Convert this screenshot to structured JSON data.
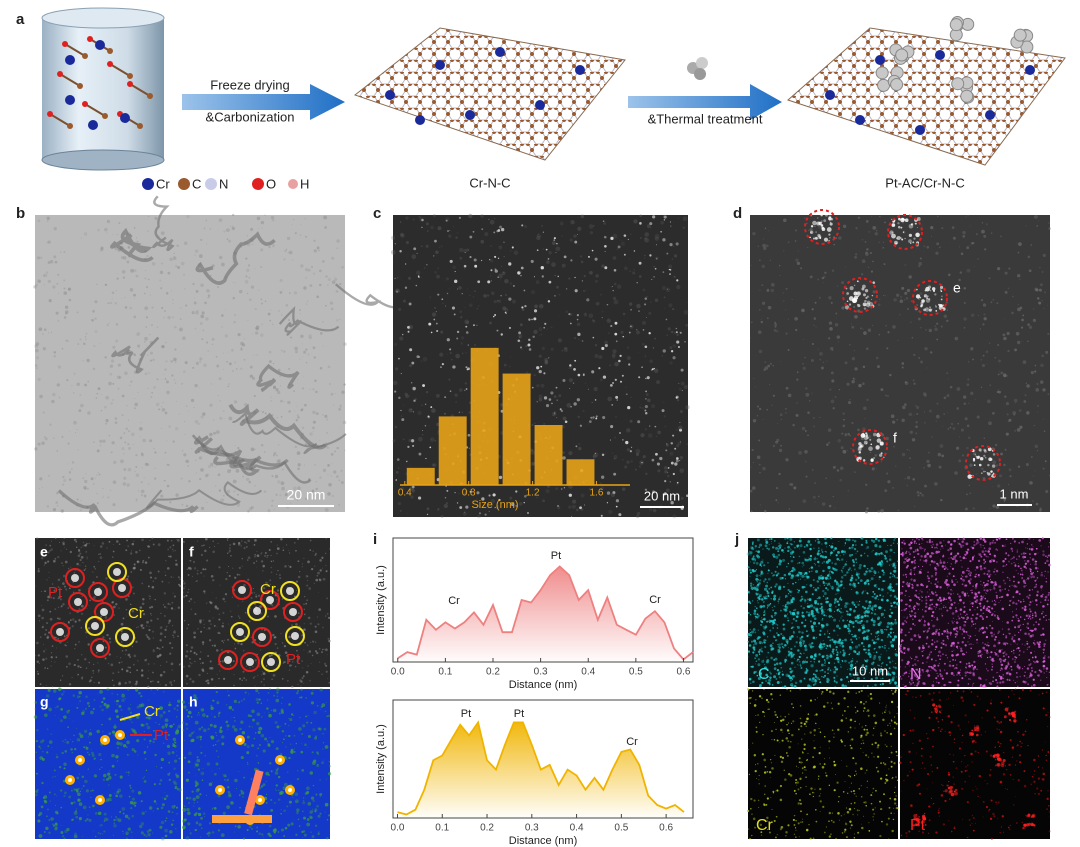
{
  "panels": {
    "a": {
      "letter": "a",
      "arrow1": [
        "Freeze drying",
        "&Carbonization"
      ],
      "arrow2": "&Thermal treatment",
      "legend": [
        "Cr",
        "C",
        "N",
        "O",
        "H"
      ],
      "label1": "Cr-N-C",
      "label2": "Pt-AC/Cr-N-C"
    },
    "b": {
      "letter": "b",
      "scale": "20 nm"
    },
    "c": {
      "letter": "c",
      "scale": "20 nm"
    },
    "d": {
      "letter": "d",
      "scale": "1 nm",
      "markers": [
        "e",
        "f"
      ]
    },
    "e": {
      "letter": "e",
      "labels": [
        "Pt",
        "Cr"
      ]
    },
    "f": {
      "letter": "f",
      "labels": [
        "Cr",
        "Pt"
      ]
    },
    "g": {
      "letter": "g",
      "labels": [
        "Cr",
        "Pt"
      ]
    },
    "h": {
      "letter": "h"
    },
    "i": {
      "letter": "i"
    },
    "j": {
      "letter": "j",
      "scale": "10 nm",
      "elements": [
        "C",
        "N",
        "Cr",
        "Pt"
      ]
    }
  },
  "chart_data": [
    {
      "type": "histogram",
      "xlabel": "Size (nm)",
      "bins": [
        0.4,
        0.6,
        0.8,
        1.0,
        1.2,
        1.4,
        1.6
      ],
      "values": [
        4,
        16,
        32,
        26,
        14,
        6
      ],
      "color": "#e8a317",
      "xlim": [
        0.37,
        1.81
      ],
      "ylim": [
        0,
        35
      ],
      "xticks": [
        0.4,
        0.8,
        1.2,
        1.6
      ]
    },
    {
      "type": "line",
      "xlabel": "Distance (nm)",
      "ylabel": "Intensity (a.u.)",
      "annotations": [
        "Cr",
        "Pt",
        "Cr"
      ],
      "color": "#ee8080",
      "x": [
        0,
        0.02,
        0.04,
        0.06,
        0.08,
        0.1,
        0.12,
        0.14,
        0.16,
        0.18,
        0.2,
        0.22,
        0.24,
        0.26,
        0.28,
        0.3,
        0.32,
        0.34,
        0.36,
        0.38,
        0.4,
        0.42,
        0.44,
        0.46,
        0.48,
        0.5,
        0.52,
        0.54,
        0.56,
        0.58,
        0.6,
        0.62
      ],
      "values": [
        0.03,
        0.08,
        0.06,
        0.34,
        0.26,
        0.32,
        0.27,
        0.32,
        0.4,
        0.3,
        0.46,
        0.24,
        0.24,
        0.5,
        0.48,
        0.58,
        0.7,
        0.77,
        0.7,
        0.5,
        0.58,
        0.34,
        0.52,
        0.3,
        0.26,
        0.22,
        0.35,
        0.41,
        0.32,
        0.11,
        0.02,
        0.08
      ],
      "xlim": [
        -0.01,
        0.62
      ],
      "ylim": [
        0,
        1
      ],
      "xticks": [
        {
          "value": 0,
          "label": "0.0"
        },
        0.1,
        0.2,
        0.3,
        0.4,
        0.5,
        0.6
      ]
    },
    {
      "type": "line",
      "xlabel": "Distance (nm)",
      "ylabel": "Intensity (a.u.)",
      "annotations": [
        "Pt",
        "Pt",
        "Cr"
      ],
      "color": "#f0b400",
      "x": [
        0,
        0.02,
        0.04,
        0.06,
        0.08,
        0.1,
        0.12,
        0.14,
        0.16,
        0.18,
        0.2,
        0.22,
        0.24,
        0.26,
        0.28,
        0.3,
        0.32,
        0.34,
        0.36,
        0.38,
        0.4,
        0.42,
        0.44,
        0.46,
        0.48,
        0.5,
        0.52,
        0.54,
        0.56,
        0.58,
        0.6,
        0.62,
        0.64
      ],
      "values": [
        0.05,
        0.03,
        0.07,
        0.24,
        0.49,
        0.53,
        0.66,
        0.79,
        0.7,
        0.81,
        0.49,
        0.41,
        0.62,
        0.81,
        0.81,
        0.62,
        0.41,
        0.45,
        0.28,
        0.41,
        0.36,
        0.24,
        0.34,
        0.24,
        0.41,
        0.56,
        0.58,
        0.45,
        0.19,
        0.11,
        0.08,
        0.11,
        0.05
      ],
      "xlim": [
        -0.01,
        0.66
      ],
      "ylim": [
        0,
        1
      ],
      "xticks": [
        {
          "value": 0,
          "label": "0.0"
        },
        0.1,
        0.2,
        0.3,
        0.4,
        0.5,
        0.6
      ]
    }
  ]
}
